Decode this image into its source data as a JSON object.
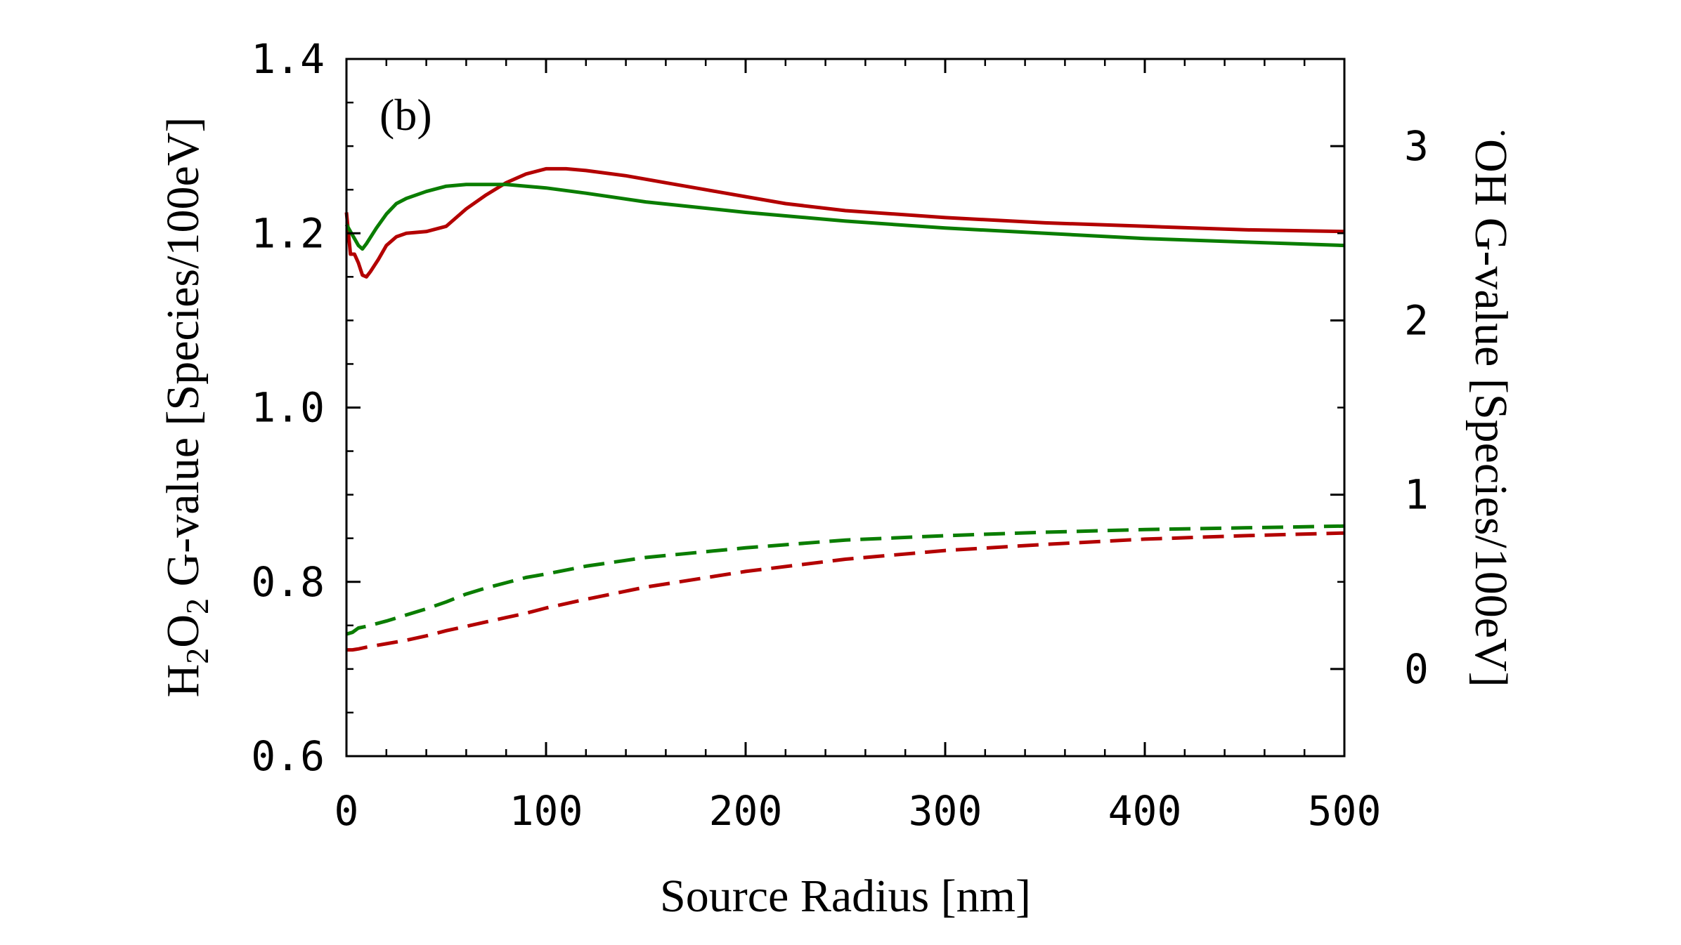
{
  "chart_data": {
    "type": "line",
    "panel_label": "(b)",
    "xlabel": "Source Radius [nm]",
    "ylabel_left": {
      "parts": [
        {
          "text": "H",
          "sub": false
        },
        {
          "text": "2",
          "sub": true
        },
        {
          "text": "O",
          "sub": false
        },
        {
          "text": "2",
          "sub": true
        },
        {
          "text": " G-value [Species/100eV]",
          "sub": false
        }
      ]
    },
    "ylabel_right": {
      "dot": "·",
      "text": "OH G-value [Species/100eV]"
    },
    "xlim": [
      0,
      500
    ],
    "ylim_left": [
      0.6,
      1.4
    ],
    "ylim_right": [
      -0.5,
      3.5
    ],
    "x_ticks": [
      0,
      100,
      200,
      300,
      400,
      500
    ],
    "x_tick_labels": [
      "0",
      "100",
      "200",
      "300",
      "400",
      "500"
    ],
    "y_left_ticks": [
      0.6,
      0.8,
      1.0,
      1.2,
      1.4
    ],
    "y_left_tick_labels": [
      "0.6",
      "0.8",
      "1.0",
      "1.2",
      "1.4"
    ],
    "y_right_ticks": [
      0,
      1,
      2,
      3
    ],
    "y_right_tick_labels": [
      "0",
      "1",
      "2",
      "3"
    ],
    "series": [
      {
        "name": "OH G-value (red)",
        "axis": "right",
        "color": "#b30000",
        "dash": false,
        "x": [
          0,
          2,
          4,
          6,
          8,
          10,
          12,
          16,
          20,
          25,
          30,
          40,
          50,
          60,
          70,
          80,
          90,
          100,
          110,
          120,
          140,
          160,
          180,
          200,
          220,
          250,
          300,
          350,
          400,
          450,
          500
        ],
        "y": [
          2.62,
          2.38,
          2.38,
          2.33,
          2.26,
          2.25,
          2.28,
          2.35,
          2.43,
          2.48,
          2.5,
          2.51,
          2.54,
          2.64,
          2.72,
          2.79,
          2.84,
          2.87,
          2.87,
          2.86,
          2.83,
          2.79,
          2.75,
          2.71,
          2.67,
          2.63,
          2.59,
          2.56,
          2.54,
          2.52,
          2.51
        ]
      },
      {
        "name": "OH G-value (green)",
        "axis": "right",
        "color": "#0a7d00",
        "dash": false,
        "x": [
          0,
          3,
          6,
          8,
          10,
          15,
          20,
          25,
          30,
          40,
          50,
          60,
          70,
          80,
          90,
          100,
          120,
          150,
          200,
          250,
          300,
          350,
          400,
          450,
          500
        ],
        "y": [
          2.55,
          2.49,
          2.43,
          2.41,
          2.44,
          2.53,
          2.61,
          2.67,
          2.7,
          2.74,
          2.77,
          2.78,
          2.78,
          2.78,
          2.77,
          2.76,
          2.73,
          2.68,
          2.62,
          2.57,
          2.53,
          2.5,
          2.47,
          2.45,
          2.43
        ]
      },
      {
        "name": "H2O2 G-value (green, dashed)",
        "axis": "left",
        "color": "#0a7d00",
        "dash": true,
        "x": [
          0,
          3,
          6,
          10,
          20,
          30,
          40,
          50,
          60,
          70,
          80,
          90,
          100,
          120,
          150,
          200,
          250,
          300,
          350,
          400,
          450,
          500
        ],
        "y": [
          0.74,
          0.742,
          0.747,
          0.749,
          0.755,
          0.762,
          0.769,
          0.777,
          0.786,
          0.793,
          0.799,
          0.805,
          0.809,
          0.818,
          0.828,
          0.839,
          0.848,
          0.853,
          0.857,
          0.86,
          0.862,
          0.864
        ]
      },
      {
        "name": "H2O2 G-value (red, dashed)",
        "axis": "left",
        "color": "#b30000",
        "dash": true,
        "x": [
          0,
          3,
          6,
          10,
          20,
          30,
          40,
          50,
          60,
          70,
          80,
          90,
          100,
          120,
          150,
          200,
          250,
          300,
          350,
          400,
          450,
          500
        ],
        "y": [
          0.722,
          0.722,
          0.723,
          0.725,
          0.729,
          0.733,
          0.738,
          0.744,
          0.749,
          0.754,
          0.759,
          0.764,
          0.77,
          0.78,
          0.794,
          0.812,
          0.826,
          0.836,
          0.843,
          0.849,
          0.853,
          0.856
        ]
      }
    ]
  }
}
